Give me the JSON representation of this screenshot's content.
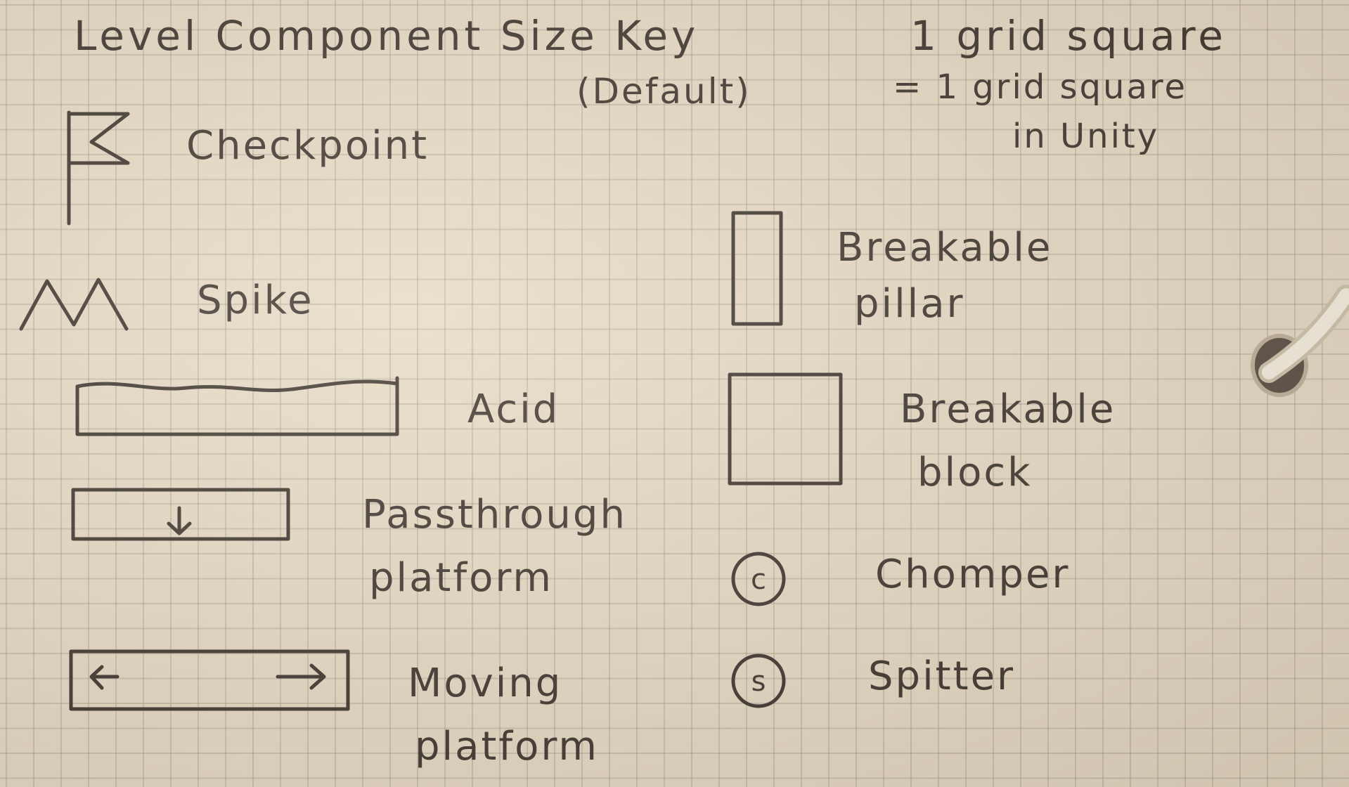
{
  "title": "Level Component Size Key",
  "title_note": "(Default)",
  "scale_note": {
    "line1": "1 grid square",
    "line2": "= 1 grid square",
    "line3": "in Unity"
  },
  "legend": {
    "checkpoint": "Checkpoint",
    "spike": "Spike",
    "acid": "Acid",
    "passthrough_line1": "Passthrough",
    "passthrough_line2": "platform",
    "moving_line1": "Moving",
    "moving_line2": "platform",
    "pillar_line1": "Breakable",
    "pillar_line2": "pillar",
    "block_line1": "Breakable",
    "block_line2": "block",
    "chomper": "Chomper",
    "chomper_symbol": "c",
    "spitter": "Spitter",
    "spitter_symbol": "s"
  },
  "colors": {
    "paper": "#e3d8c4",
    "ink": "#2b2520"
  }
}
